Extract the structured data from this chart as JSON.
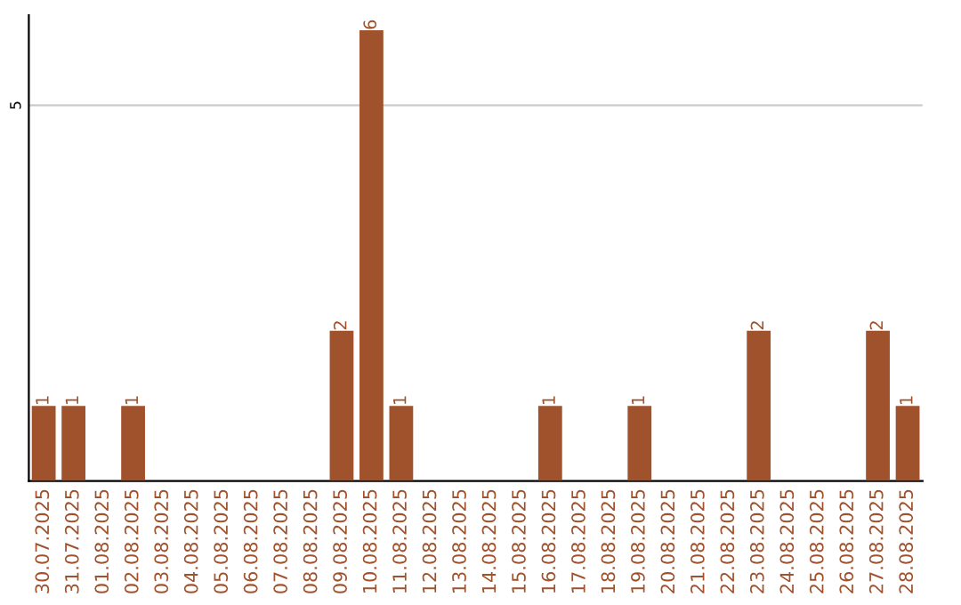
{
  "chart_data": {
    "type": "bar",
    "categories": [
      "30.07.2025",
      "31.07.2025",
      "01.08.2025",
      "02.08.2025",
      "03.08.2025",
      "04.08.2025",
      "05.08.2025",
      "06.08.2025",
      "07.08.2025",
      "08.08.2025",
      "09.08.2025",
      "10.08.2025",
      "11.08.2025",
      "12.08.2025",
      "13.08.2025",
      "14.08.2025",
      "15.08.2025",
      "16.08.2025",
      "17.08.2025",
      "18.08.2025",
      "19.08.2025",
      "20.08.2025",
      "21.08.2025",
      "22.08.2025",
      "23.08.2025",
      "24.08.2025",
      "25.08.2025",
      "26.08.2025",
      "27.08.2025",
      "28.08.2025"
    ],
    "values": [
      1,
      1,
      0,
      1,
      0,
      0,
      0,
      0,
      0,
      0,
      2,
      6,
      1,
      0,
      0,
      0,
      0,
      1,
      0,
      0,
      1,
      0,
      0,
      0,
      2,
      0,
      0,
      0,
      2,
      1
    ],
    "value_labels": [
      "1",
      "1",
      null,
      "1",
      null,
      null,
      null,
      null,
      null,
      null,
      "2",
      "6",
      "1",
      null,
      null,
      null,
      null,
      "1",
      null,
      null,
      "1",
      null,
      null,
      null,
      "2",
      null,
      null,
      null,
      "2",
      "1"
    ],
    "color": "#a0522d",
    "ylim": [
      0,
      6.2
    ],
    "yticks": [
      5
    ],
    "grid": "y"
  }
}
